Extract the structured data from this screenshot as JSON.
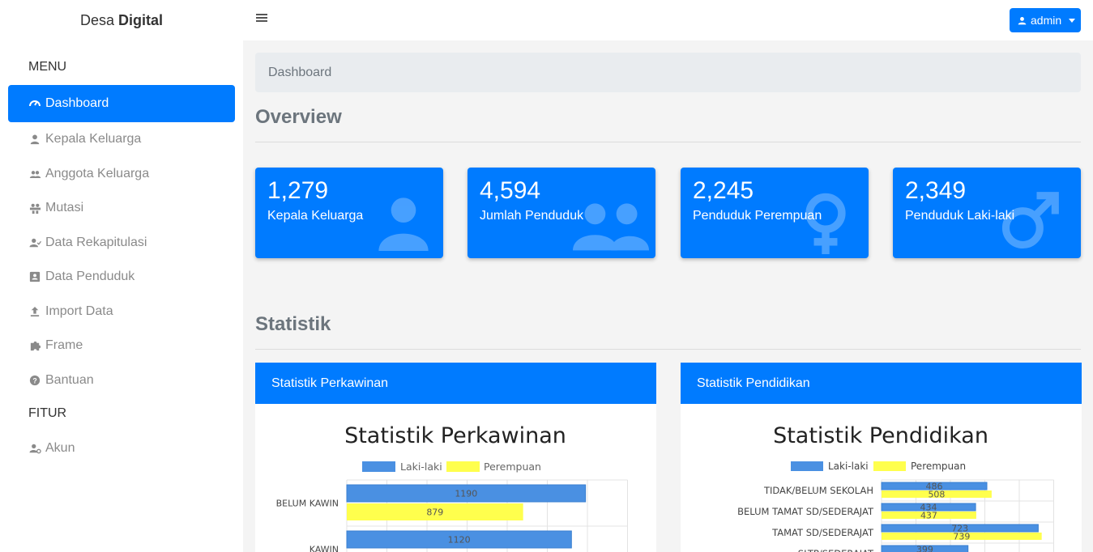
{
  "brand": {
    "prefix": "Desa",
    "bold": "Digital"
  },
  "sidebar": {
    "menu_heading": "MENU",
    "items": [
      {
        "label": "Dashboard",
        "icon": "speedometer-icon"
      },
      {
        "label": "Kepala Keluarga",
        "icon": "person-icon"
      },
      {
        "label": "Anggota Keluarga",
        "icon": "people-icon"
      },
      {
        "label": "Mutasi",
        "icon": "people-swap-icon"
      },
      {
        "label": "Data Rekapitulasi",
        "icon": "person-check-icon"
      },
      {
        "label": "Data Penduduk",
        "icon": "id-card-icon"
      },
      {
        "label": "Import Data",
        "icon": "upload-icon"
      },
      {
        "label": "Frame",
        "icon": "puzzle-icon"
      },
      {
        "label": "Bantuan",
        "icon": "help-circle-icon"
      }
    ],
    "fitur_heading": "FITUR",
    "fitur_items": [
      {
        "label": "Akun",
        "icon": "person-gear-icon"
      }
    ]
  },
  "topbar": {
    "user_label": "admin"
  },
  "breadcrumb": "Dashboard",
  "overview_title": "Overview",
  "cards": [
    {
      "value": "1,279",
      "label": "Kepala Keluarga",
      "icon": "person-icon"
    },
    {
      "value": "4,594",
      "label": "Jumlah Penduduk",
      "icon": "people-icon"
    },
    {
      "value": "2,245",
      "label": "Penduduk Perempuan",
      "icon": "female-icon"
    },
    {
      "value": "2,349",
      "label": "Penduduk Laki-laki",
      "icon": "male-icon"
    }
  ],
  "statistik_title": "Statistik",
  "colors": {
    "primary": "#007bff",
    "male": "#4a90e2",
    "female": "#ffff4d"
  },
  "chart_data": [
    {
      "type": "bar",
      "panel_title": "Statistik Perkawinan",
      "title": "Statistik Perkawinan",
      "orientation": "horizontal",
      "legend_position": "top",
      "categories": [
        "BELUM KAWIN",
        "KAWIN"
      ],
      "series": [
        {
          "name": "Laki-laki",
          "values": [
            1190,
            1120
          ]
        },
        {
          "name": "Perempuan",
          "values": [
            879,
            null
          ]
        }
      ]
    },
    {
      "type": "bar",
      "panel_title": "Statistik Pendidikan",
      "title": "Statistik Pendidikan",
      "orientation": "horizontal",
      "legend_position": "top",
      "categories": [
        "TIDAK/BELUM SEKOLAH",
        "BELUM TAMAT SD/SEDERAJAT",
        "TAMAT SD/SEDERAJAT",
        "SLTP/SEDERAJAT"
      ],
      "series": [
        {
          "name": "Laki-laki",
          "values": [
            486,
            434,
            723,
            399
          ]
        },
        {
          "name": "Perempuan",
          "values": [
            508,
            437,
            739,
            null
          ]
        }
      ]
    }
  ]
}
